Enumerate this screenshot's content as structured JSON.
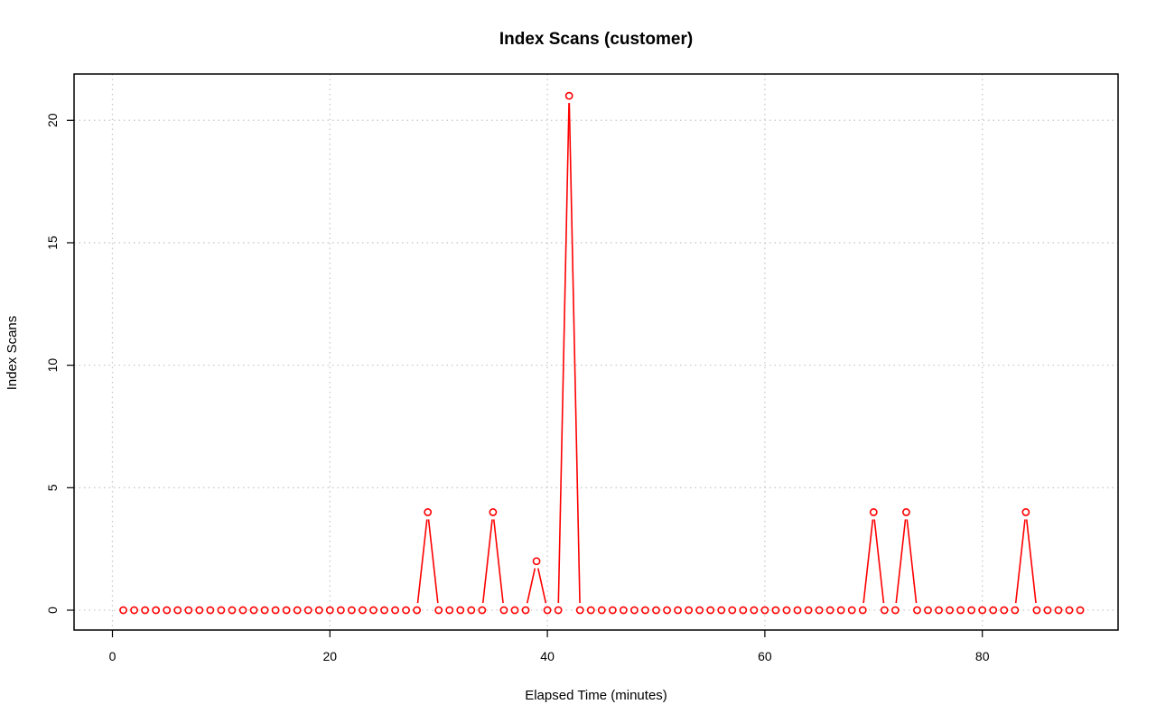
{
  "chart_data": {
    "type": "line",
    "title": "Index Scans (customer)",
    "xlabel": "Elapsed Time (minutes)",
    "ylabel": "Index Scans",
    "xlim": [
      0,
      92
    ],
    "ylim": [
      0,
      21
    ],
    "xticks": [
      0,
      20,
      40,
      60,
      80
    ],
    "yticks": [
      0,
      5,
      10,
      15,
      20
    ],
    "grid": true,
    "series_color": "#ff0000",
    "series": [
      {
        "x": [
          1,
          2,
          3,
          4,
          5,
          6,
          7,
          8,
          9,
          10,
          11,
          12,
          13,
          14,
          15,
          16,
          17,
          18,
          19,
          20,
          21,
          22,
          23,
          24,
          25,
          26,
          27,
          28,
          29,
          30,
          31,
          32,
          33,
          34,
          35,
          36,
          37,
          38,
          39,
          40,
          41,
          42,
          43,
          44,
          45,
          46,
          47,
          48,
          49,
          50,
          51,
          52,
          53,
          54,
          55,
          56,
          57,
          58,
          59,
          60,
          61,
          62,
          63,
          64,
          65,
          66,
          67,
          68,
          69,
          70,
          71,
          72,
          73,
          74,
          75,
          76,
          77,
          78,
          79,
          80,
          81,
          82,
          83,
          84,
          85,
          86,
          87,
          88,
          89
        ],
        "values": [
          0,
          0,
          0,
          0,
          0,
          0,
          0,
          0,
          0,
          0,
          0,
          0,
          0,
          0,
          0,
          0,
          0,
          0,
          0,
          0,
          0,
          0,
          0,
          0,
          0,
          0,
          0,
          0,
          4,
          0,
          0,
          0,
          0,
          0,
          4,
          0,
          0,
          0,
          2,
          0,
          0,
          21,
          0,
          0,
          0,
          0,
          0,
          0,
          0,
          0,
          0,
          0,
          0,
          0,
          0,
          0,
          0,
          0,
          0,
          0,
          0,
          0,
          0,
          0,
          0,
          0,
          0,
          0,
          0,
          4,
          0,
          0,
          4,
          0,
          0,
          0,
          0,
          0,
          0,
          0,
          0,
          0,
          0,
          4,
          0,
          0,
          0,
          0,
          0
        ]
      }
    ]
  }
}
